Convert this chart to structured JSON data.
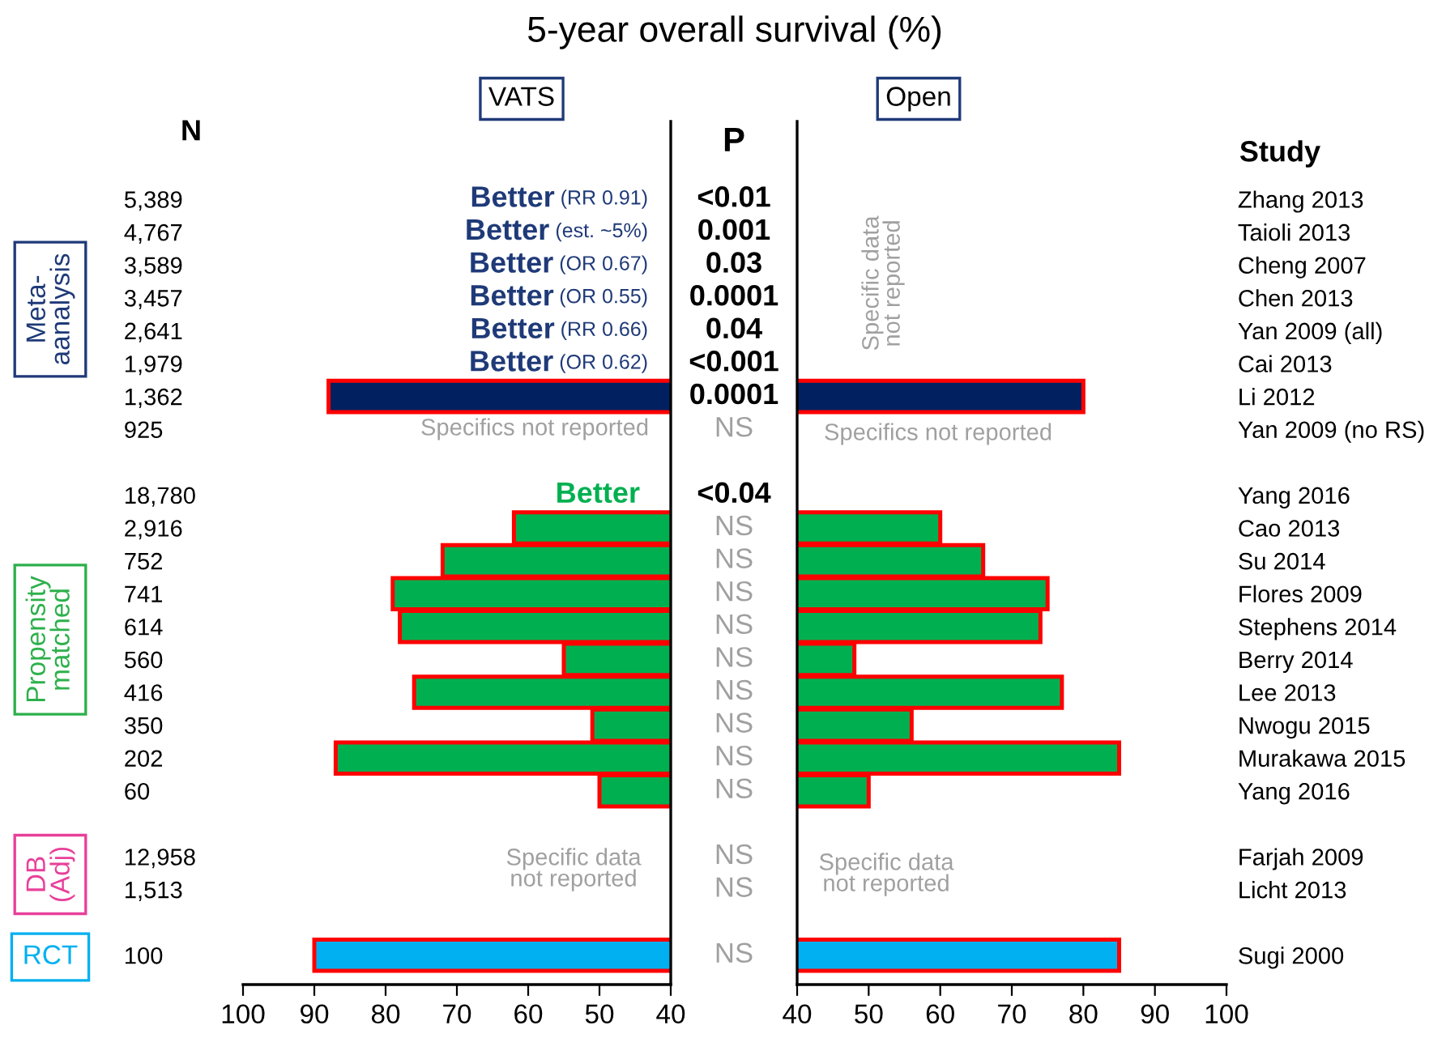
{
  "chart_data": [
    {
      "type": "bar",
      "orientation": "horizontal",
      "title": "5-year overall survival (%)",
      "subtitle": "VATS",
      "ylabel": "N",
      "categories": [
        "5,389",
        "4,767",
        "3,589",
        "3,457",
        "2,641",
        "1,979",
        "1,362",
        "925",
        null,
        "18,780",
        "2,916",
        "752",
        "741",
        "614",
        "560",
        "416",
        "350",
        "202",
        "60",
        null,
        "12,958",
        "1,513",
        null,
        "100"
      ],
      "values": [
        null,
        null,
        null,
        null,
        null,
        null,
        88,
        null,
        null,
        null,
        62,
        72,
        79,
        78,
        55,
        76,
        51,
        87,
        50,
        null,
        null,
        null,
        null,
        90
      ],
      "colors": [
        "#002060",
        "#002060",
        "#002060",
        "#002060",
        "#002060",
        "#002060",
        "#002060",
        "#002060",
        null,
        "#00b050",
        "#00b050",
        "#00b050",
        "#00b050",
        "#00b050",
        "#00b050",
        "#00b050",
        "#00b050",
        "#00b050",
        "#00b050",
        null,
        null,
        null,
        null,
        "#00b0f0"
      ],
      "xlim": [
        100,
        40
      ],
      "xticks": [
        100,
        90,
        80,
        70,
        60,
        50,
        40
      ],
      "grid": false,
      "legend": false,
      "annotations": [
        "P",
        "Meta-\naanalysis",
        "Propensity\nmatched",
        "DB\n(Adj)",
        "RCT",
        "Specifics not reported",
        "Specific data\nnot reported",
        "Better (RR 0.91)",
        "Better (est. ~5%)",
        "Better (OR 0.67)",
        "Better (OR 0.55)",
        "Better (RR 0.66)",
        "Better (OR 0.62)",
        "Better",
        "<0.01",
        "0.001",
        "0.03",
        "0.0001",
        "0.04",
        "<0.001",
        "0.0001",
        "NS",
        "<0.04",
        "NS",
        "NS",
        "NS",
        "NS",
        "NS",
        "NS",
        "NS",
        "NS",
        "NS",
        "NS",
        "NS",
        "NS"
      ]
    },
    {
      "type": "bar",
      "orientation": "horizontal",
      "subtitle": "Open",
      "ylabel": "Study",
      "categories": [
        "Zhang 2013",
        "Taioli 2013",
        "Cheng 2007",
        "Chen 2013",
        "Yan 2009 (all)",
        "Cai 2013",
        "Li 2012",
        "Yan 2009 (no RS)",
        null,
        "Yang 2016",
        "Cao 2013",
        "Su 2014",
        "Flores 2009",
        "Stephens 2014",
        "Berry 2014",
        "Lee 2013",
        "Nwogu 2015",
        "Murakawa 2015",
        "Yang 2016",
        null,
        "Farjah 2009",
        "Licht 2013",
        null,
        "Sugi 2000"
      ],
      "values": [
        null,
        null,
        null,
        null,
        null,
        null,
        80,
        null,
        null,
        null,
        60,
        66,
        75,
        74,
        48,
        77,
        56,
        85,
        50,
        null,
        null,
        null,
        null,
        85
      ],
      "colors": [
        "#002060",
        "#002060",
        "#002060",
        "#002060",
        "#002060",
        "#002060",
        "#002060",
        "#002060",
        null,
        "#00b050",
        "#00b050",
        "#00b050",
        "#00b050",
        "#00b050",
        "#00b050",
        "#00b050",
        "#00b050",
        "#00b050",
        "#00b050",
        null,
        null,
        null,
        null,
        "#00b0f0"
      ],
      "xlim": [
        40,
        100
      ],
      "xticks": [
        40,
        50,
        60,
        70,
        80,
        90,
        100
      ],
      "grid": false,
      "legend": false,
      "annotations": [
        "Specific data\nnot reported",
        "Specifics not reported",
        "Specific data\nnot reported"
      ]
    }
  ]
}
